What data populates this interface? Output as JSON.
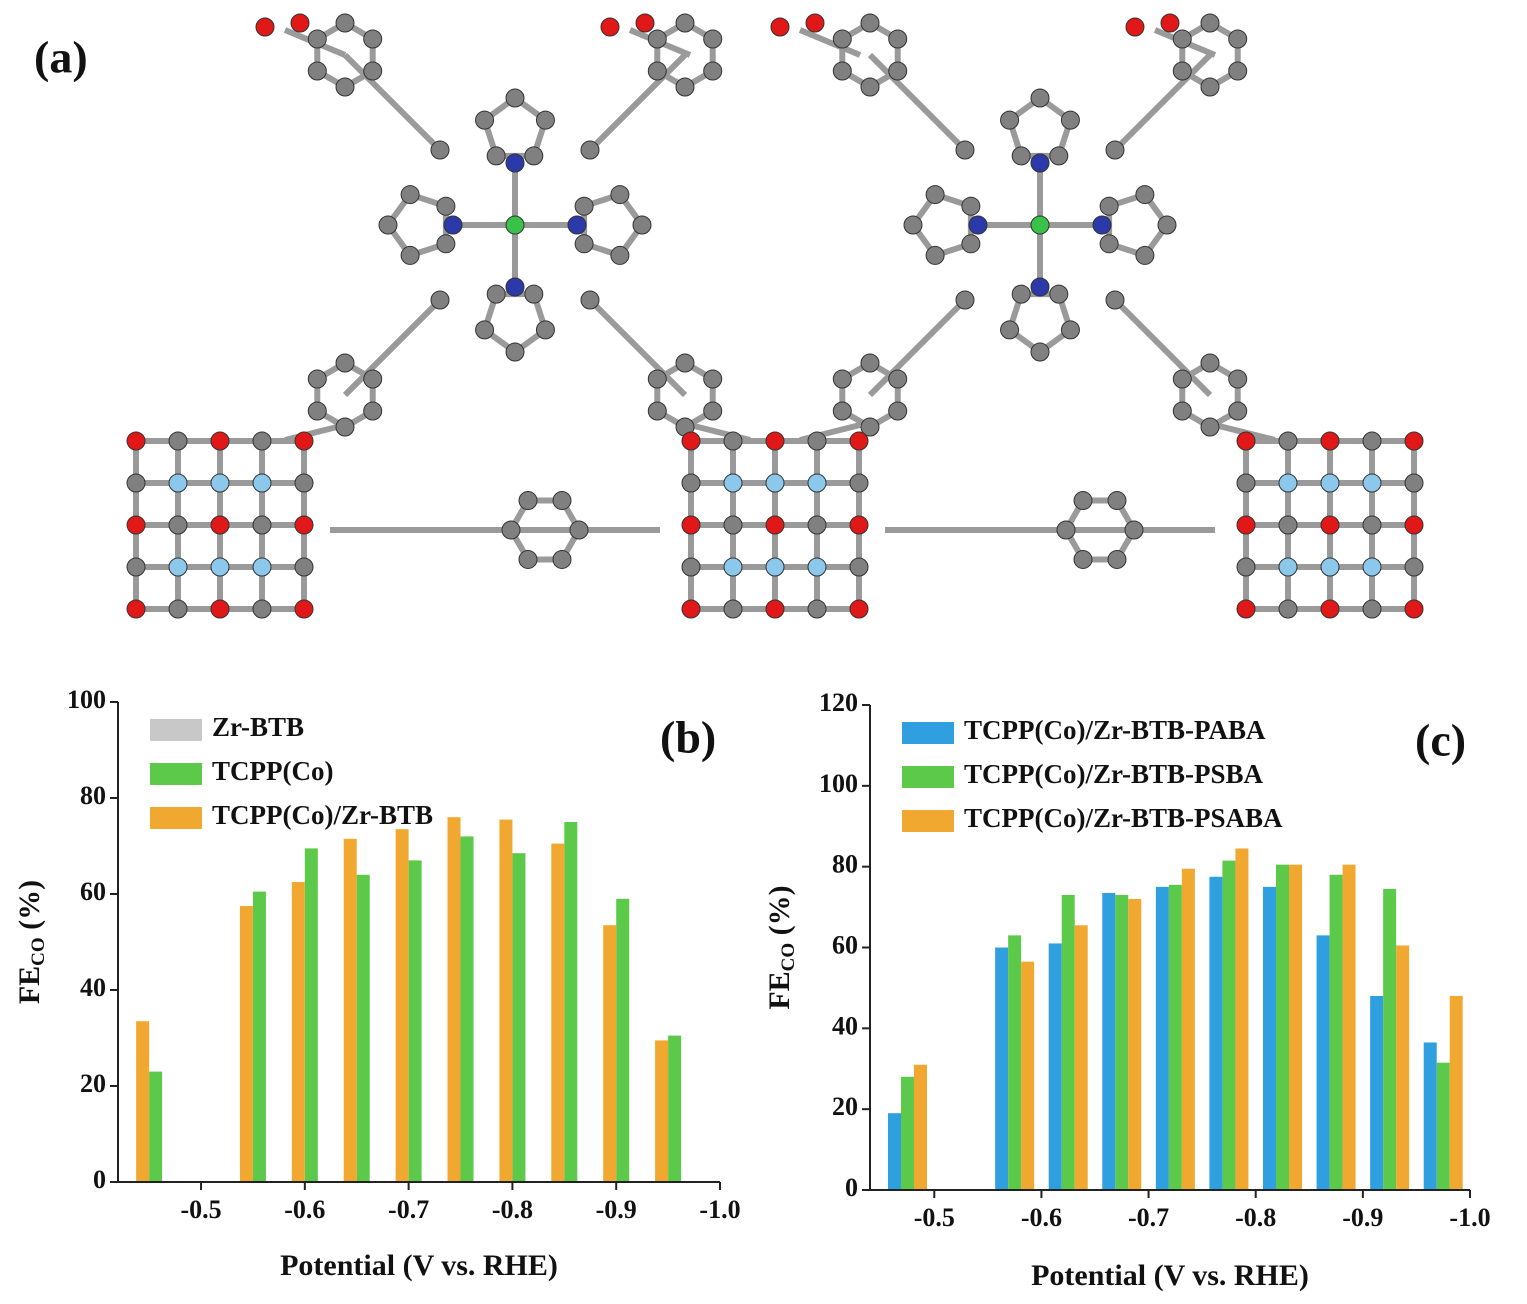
{
  "panel_label": "(a)",
  "chart_data": [
    {
      "type": "bar",
      "panel_label": "(b)",
      "ylabel": [
        "FE",
        "CO",
        " (%)"
      ],
      "xlabel": "Potential (V vs. RHE)",
      "x": [
        -0.45,
        -0.55,
        -0.6,
        -0.65,
        -0.7,
        -0.75,
        -0.8,
        -0.85,
        -0.9,
        -0.95
      ],
      "series": [
        {
          "name": "Zr-BTB",
          "color": "#c8c8c8",
          "values": [
            0.5,
            0.5,
            0.5,
            0.5,
            0.5,
            0.5,
            0.5,
            0.5,
            0.5,
            0.5
          ]
        },
        {
          "name": "TCPP(Co)",
          "color": "#5cc94a",
          "values": [
            23,
            60.5,
            69.5,
            64,
            67,
            72,
            68.5,
            75,
            59,
            30.5
          ]
        },
        {
          "name": "TCPP(Co)/Zr-BTB",
          "color": "#f0a830",
          "values": [
            33.5,
            57.5,
            62.5,
            71.5,
            73.5,
            76,
            75.5,
            70.5,
            53.5,
            29.5
          ]
        }
      ],
      "xlim": [
        -0.42,
        -1.0
      ],
      "xticks": [
        -0.5,
        -0.6,
        -0.7,
        -0.8,
        -0.9,
        {
          "value": -1,
          "label": "-1.0"
        }
      ],
      "ylim": [
        0,
        100
      ],
      "yticks": [
        0,
        20,
        40,
        60,
        80,
        100
      ],
      "legend": "upper left"
    },
    {
      "type": "bar",
      "panel_label": "(c)",
      "ylabel": [
        "FE",
        "CO",
        " (%)"
      ],
      "xlabel": "Potential (V vs. RHE)",
      "x": [
        -0.475,
        -0.575,
        -0.625,
        -0.675,
        -0.725,
        -0.775,
        -0.825,
        -0.875,
        -0.925,
        -0.975
      ],
      "series": [
        {
          "name": "TCPP(Co)/Zr-BTB-PABA",
          "color": "#2f9fe0",
          "values": [
            19,
            60,
            61,
            73.5,
            75,
            77.5,
            75,
            63,
            48,
            36.5
          ]
        },
        {
          "name": "TCPP(Co)/Zr-BTB-PSBA",
          "color": "#5cc94a",
          "values": [
            28,
            63,
            73,
            73,
            75.5,
            81.5,
            80.5,
            78,
            74.5,
            31.5
          ]
        },
        {
          "name": "TCPP(Co)/Zr-BTB-PSABA",
          "color": "#f0a830",
          "values": [
            31,
            56.5,
            65.5,
            72,
            79.5,
            84.5,
            80.5,
            80.5,
            60.5,
            48
          ]
        }
      ],
      "xlim": [
        -0.44,
        -1.0
      ],
      "xticks": [
        -0.5,
        -0.6,
        -0.7,
        -0.8,
        -0.9,
        {
          "value": -1,
          "label": "-1.0"
        }
      ],
      "ylim": [
        0,
        120
      ],
      "yticks": [
        0,
        20,
        40,
        60,
        80,
        100,
        120
      ],
      "legend": "upper left"
    }
  ]
}
